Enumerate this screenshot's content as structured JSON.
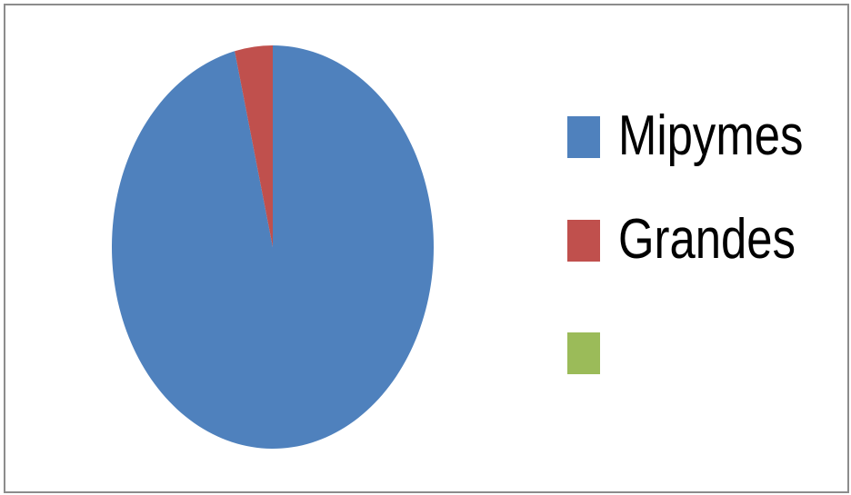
{
  "chart_data": {
    "type": "pie",
    "title": "",
    "categories": [
      "Mipymes",
      "Grandes",
      ""
    ],
    "values": [
      96.2,
      3.8,
      0
    ],
    "colors": [
      "#4f81bd",
      "#c0504d",
      "#9bbb59"
    ],
    "legend_position": "right",
    "series": [
      {
        "values": [
          96.2,
          3.8,
          0
        ]
      }
    ]
  }
}
